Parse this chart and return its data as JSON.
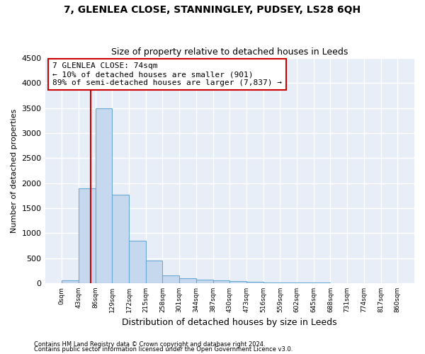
{
  "title1": "7, GLENLEA CLOSE, STANNINGLEY, PUDSEY, LS28 6QH",
  "title2": "Size of property relative to detached houses in Leeds",
  "xlabel": "Distribution of detached houses by size in Leeds",
  "ylabel": "Number of detached properties",
  "bar_values": [
    50,
    1900,
    3500,
    1775,
    850,
    450,
    160,
    100,
    75,
    55,
    40,
    30,
    20,
    15,
    10,
    8,
    5,
    4,
    3,
    2
  ],
  "bin_edges": [
    0,
    43,
    86,
    129,
    172,
    215,
    258,
    301,
    344,
    387,
    430,
    473,
    516,
    559,
    602,
    645,
    688,
    731,
    774,
    817,
    860
  ],
  "bar_color": "#c5d8ee",
  "bar_edge_color": "#6aaad4",
  "red_line_x": 74,
  "annotation_line1": "7 GLENLEA CLOSE: 74sqm",
  "annotation_line2": "← 10% of detached houses are smaller (901)",
  "annotation_line3": "89% of semi-detached houses are larger (7,837) →",
  "annotation_box_color": "#ffffff",
  "annotation_box_edge": "#cc0000",
  "red_line_color": "#cc0000",
  "ylim": [
    0,
    4500
  ],
  "yticks": [
    0,
    500,
    1000,
    1500,
    2000,
    2500,
    3000,
    3500,
    4000,
    4500
  ],
  "footer1": "Contains HM Land Registry data © Crown copyright and database right 2024.",
  "footer2": "Contains public sector information licensed under the Open Government Licence v3.0.",
  "bg_color": "#e8eef7",
  "grid_color": "#ffffff",
  "fig_bg": "#ffffff",
  "title1_fontsize": 10,
  "title2_fontsize": 9,
  "annotation_fontsize": 8
}
